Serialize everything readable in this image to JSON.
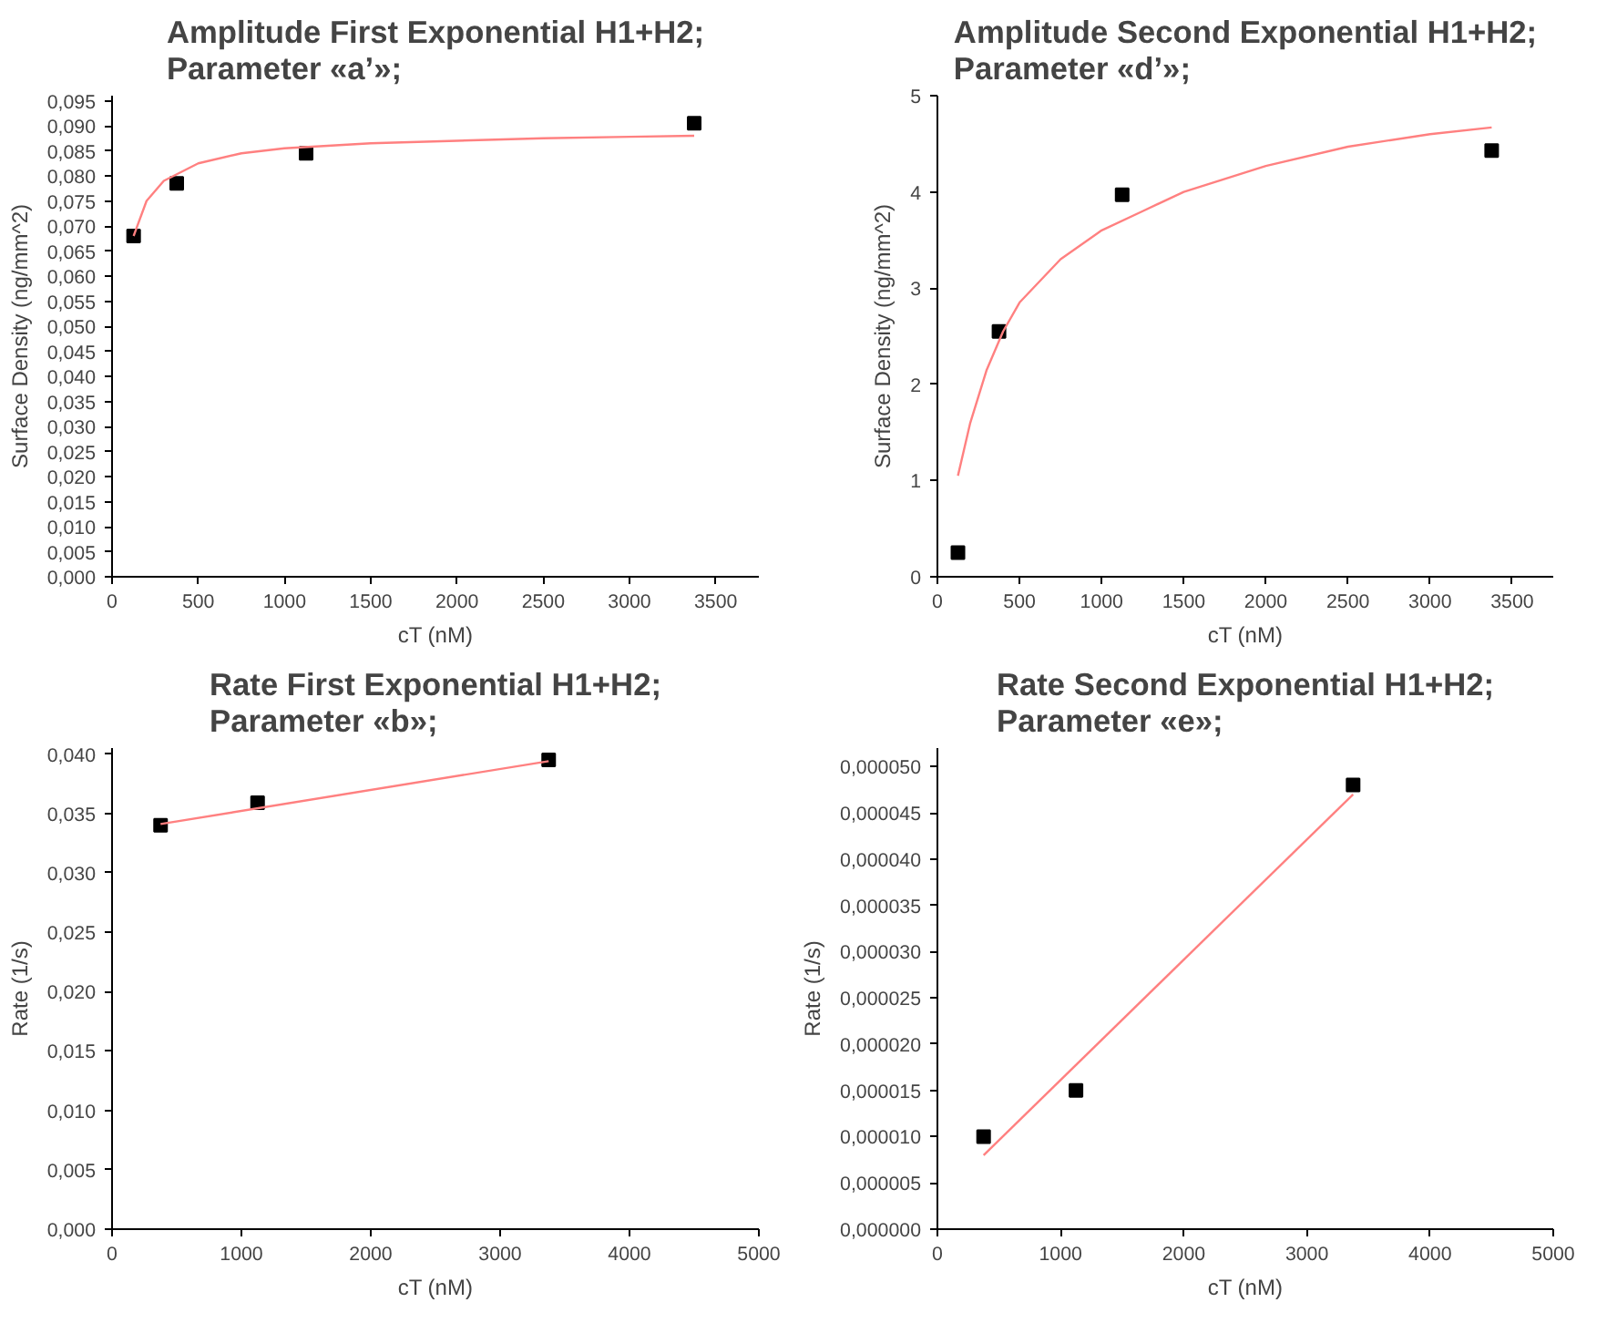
{
  "chart_data": [
    {
      "type": "scatter",
      "title": "Amplitude First Exponential H1+H2;\nParameter «a’»;",
      "xlabel": "cT (nM)",
      "ylabel": "Surface Density (ng/mm^2)",
      "marker": "square",
      "grid": false,
      "xlim": [
        0,
        3750
      ],
      "xticks": [
        0,
        500,
        1000,
        1500,
        2000,
        2500,
        3000,
        3500
      ],
      "ylim": [
        0,
        0.096
      ],
      "yticks": [
        {
          "value": 0,
          "label": "0,000"
        },
        {
          "value": 0.005,
          "label": "0,005"
        },
        {
          "value": 0.01,
          "label": "0,010"
        },
        {
          "value": 0.015,
          "label": "0,015"
        },
        {
          "value": 0.02,
          "label": "0,020"
        },
        {
          "value": 0.025,
          "label": "0,025"
        },
        {
          "value": 0.03,
          "label": "0,030"
        },
        {
          "value": 0.035,
          "label": "0,035"
        },
        {
          "value": 0.04,
          "label": "0,040"
        },
        {
          "value": 0.045,
          "label": "0,045"
        },
        {
          "value": 0.05,
          "label": "0,050"
        },
        {
          "value": 0.055,
          "label": "0,055"
        },
        {
          "value": 0.06,
          "label": "0,060"
        },
        {
          "value": 0.065,
          "label": "0,065"
        },
        {
          "value": 0.07,
          "label": "0,070"
        },
        {
          "value": 0.075,
          "label": "0,075"
        },
        {
          "value": 0.08,
          "label": "0,080"
        },
        {
          "value": 0.085,
          "label": "0,085"
        },
        {
          "value": 0.09,
          "label": "0,090"
        },
        {
          "value": 0.095,
          "label": "0,095"
        }
      ],
      "series": [
        {
          "color": "#000000",
          "x": [
            125,
            375,
            1125,
            3375
          ],
          "values": [
            0.068,
            0.0785,
            0.0845,
            0.0905
          ]
        },
        {
          "type": "line",
          "marker": "none",
          "color": "#ff8080",
          "x": [
            125,
            200,
            300,
            500,
            750,
            1000,
            1500,
            2000,
            2500,
            3000,
            3375
          ],
          "values": [
            0.068,
            0.075,
            0.079,
            0.0825,
            0.0845,
            0.0855,
            0.0865,
            0.087,
            0.0875,
            0.0878,
            0.088
          ]
        }
      ]
    },
    {
      "type": "scatter",
      "title": "Amplitude Second Exponential H1+H2;\nParameter «d’»;",
      "xlabel": "cT (nM)",
      "ylabel": "Surface Density (ng/mm^2)",
      "marker": "square",
      "grid": false,
      "xlim": [
        0,
        3750
      ],
      "xticks": [
        0,
        500,
        1000,
        1500,
        2000,
        2500,
        3000,
        3500
      ],
      "ylim": [
        0,
        5
      ],
      "yticks": [
        0,
        1,
        2,
        3,
        4,
        5
      ],
      "series": [
        {
          "color": "#000000",
          "x": [
            125,
            375,
            1125,
            3375
          ],
          "values": [
            0.25,
            2.55,
            3.97,
            4.43
          ]
        },
        {
          "type": "line",
          "marker": "none",
          "color": "#ff8080",
          "x": [
            125,
            200,
            300,
            400,
            500,
            750,
            1000,
            1250,
            1500,
            2000,
            2500,
            3000,
            3375
          ],
          "values": [
            1.05,
            1.6,
            2.15,
            2.55,
            2.85,
            3.3,
            3.6,
            3.8,
            4.0,
            4.27,
            4.47,
            4.6,
            4.67
          ]
        }
      ]
    },
    {
      "type": "scatter",
      "title": "Rate First Exponential H1+H2;\nParameter «b»;",
      "xlabel": "cT (nM)",
      "ylabel": "Rate (1/s)",
      "marker": "square",
      "grid": false,
      "xlim": [
        0,
        5000
      ],
      "xticks": [
        0,
        1000,
        2000,
        3000,
        4000,
        5000
      ],
      "ylim": [
        0,
        0.0405
      ],
      "yticks": [
        {
          "value": 0,
          "label": "0,000"
        },
        {
          "value": 0.005,
          "label": "0,005"
        },
        {
          "value": 0.01,
          "label": "0,010"
        },
        {
          "value": 0.015,
          "label": "0,015"
        },
        {
          "value": 0.02,
          "label": "0,020"
        },
        {
          "value": 0.025,
          "label": "0,025"
        },
        {
          "value": 0.03,
          "label": "0,030"
        },
        {
          "value": 0.035,
          "label": "0,035"
        },
        {
          "value": 0.04,
          "label": "0,040"
        }
      ],
      "series": [
        {
          "color": "#000000",
          "x": [
            375,
            1125,
            3375
          ],
          "values": [
            0.034,
            0.0359,
            0.0395
          ]
        },
        {
          "type": "line",
          "marker": "none",
          "color": "#ff8080",
          "x": [
            375,
            3375
          ],
          "values": [
            0.0341,
            0.0394
          ]
        }
      ]
    },
    {
      "type": "scatter",
      "title": "Rate Second Exponential H1+H2;\nParameter «e»;",
      "xlabel": "cT (nM)",
      "ylabel": "Rate (1/s)",
      "marker": "square",
      "grid": false,
      "xlim": [
        0,
        5000
      ],
      "xticks": [
        0,
        1000,
        2000,
        3000,
        4000,
        5000
      ],
      "ylim": [
        0,
        5.2e-05
      ],
      "yticks": [
        {
          "value": 0,
          "label": "0,000000"
        },
        {
          "value": 5e-06,
          "label": "0,000005"
        },
        {
          "value": 1e-05,
          "label": "0,000010"
        },
        {
          "value": 1.5e-05,
          "label": "0,000015"
        },
        {
          "value": 2e-05,
          "label": "0,000020"
        },
        {
          "value": 2.5e-05,
          "label": "0,000025"
        },
        {
          "value": 3e-05,
          "label": "0,000030"
        },
        {
          "value": 3.5e-05,
          "label": "0,000035"
        },
        {
          "value": 4e-05,
          "label": "0,000040"
        },
        {
          "value": 4.5e-05,
          "label": "0,000045"
        },
        {
          "value": 5e-05,
          "label": "0,000050"
        }
      ],
      "series": [
        {
          "color": "#000000",
          "x": [
            375,
            1125,
            3375
          ],
          "values": [
            1e-05,
            1.5e-05,
            4.8e-05
          ]
        },
        {
          "type": "line",
          "marker": "none",
          "color": "#ff8080",
          "x": [
            375,
            3375
          ],
          "values": [
            8e-06,
            4.7e-05
          ]
        }
      ]
    }
  ]
}
